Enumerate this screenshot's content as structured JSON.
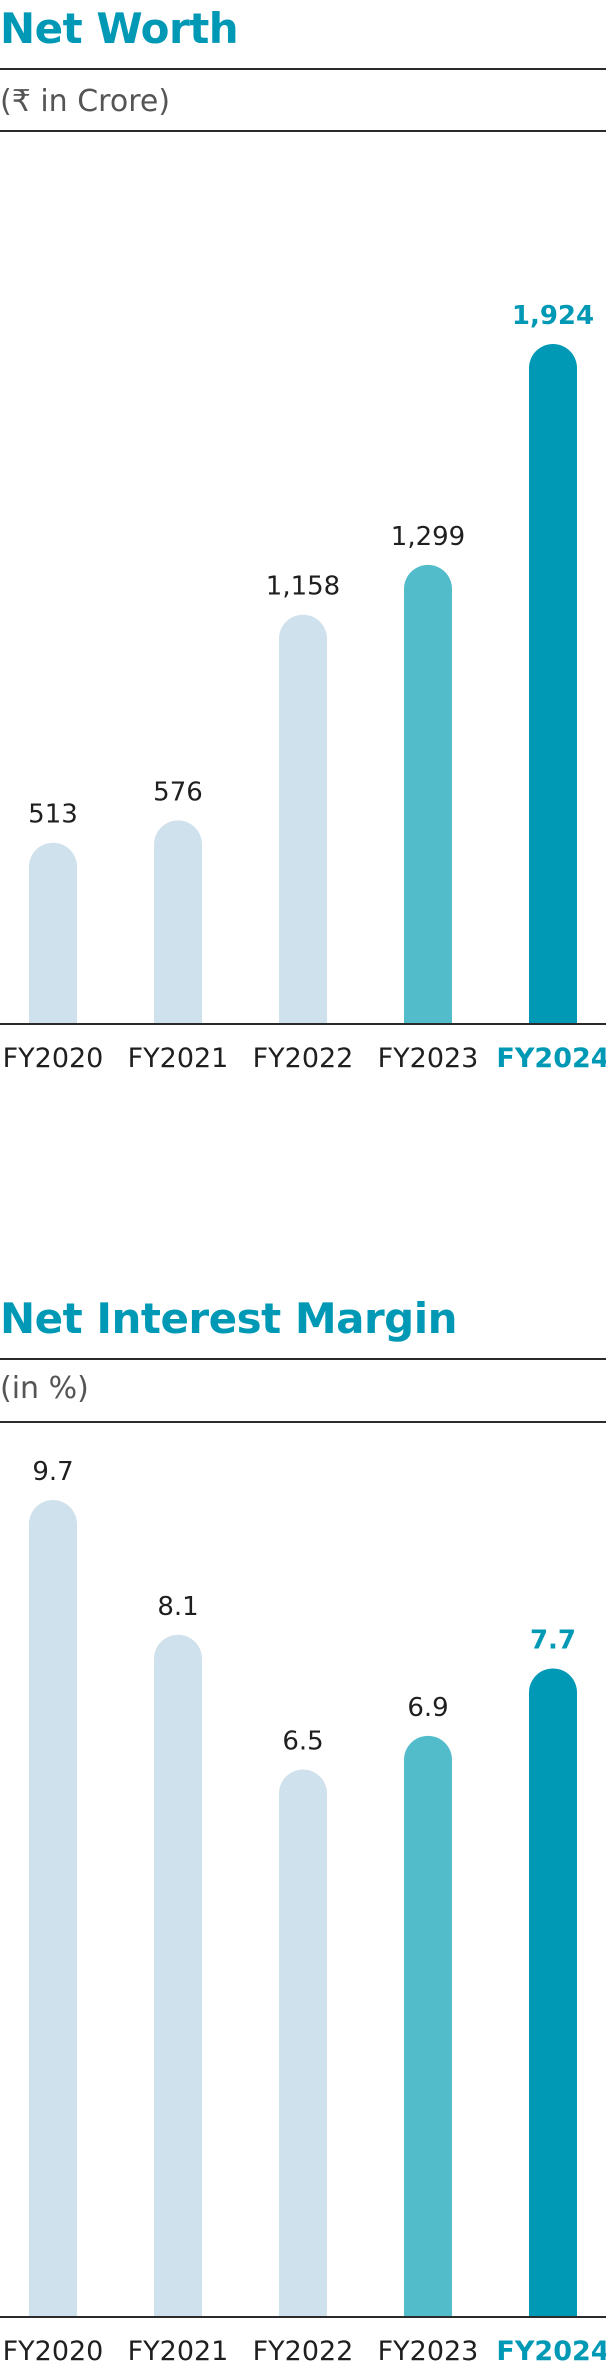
{
  "colors": {
    "accent": "#0099b5",
    "past": "#cfe1ec",
    "prior": "#52bcca",
    "text": "#1f1f1f",
    "axis": "#2b2b2b"
  },
  "chart_data": [
    {
      "type": "bar",
      "title": "Net Worth",
      "subtitle": "(₹ in Crore)",
      "categories": [
        "FY2020",
        "FY2021",
        "FY2022",
        "FY2023",
        "FY2024"
      ],
      "values": [
        513,
        576,
        1158,
        1299,
        1924
      ],
      "value_labels": [
        "513",
        "576",
        "1,158",
        "1,299",
        "1,924"
      ],
      "highlight": "FY2024",
      "ylim": [
        0,
        1924
      ],
      "grid": false,
      "legend": "none"
    },
    {
      "type": "bar",
      "title": "Net Interest Margin",
      "subtitle": "(in %)",
      "categories": [
        "FY2020",
        "FY2021",
        "FY2022",
        "FY2023",
        "FY2024"
      ],
      "values": [
        9.7,
        8.1,
        6.5,
        6.9,
        7.7
      ],
      "value_labels": [
        "9.7",
        "8.1",
        "6.5",
        "6.9",
        "7.7"
      ],
      "highlight": "FY2024",
      "ylim": [
        0,
        9.7
      ],
      "grid": false,
      "legend": "none"
    }
  ]
}
